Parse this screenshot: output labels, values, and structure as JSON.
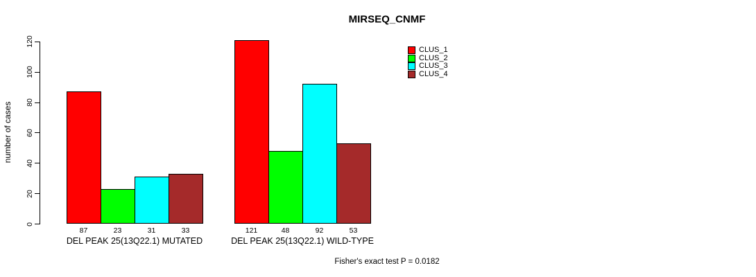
{
  "chart_data": {
    "type": "bar",
    "title": "MIRSEQ_CNMF",
    "ylabel": "number of cases",
    "xlabel": "",
    "ylim": [
      0,
      120
    ],
    "yticks": [
      0,
      20,
      40,
      60,
      80,
      100,
      120
    ],
    "grid": false,
    "legend_position": "top-right",
    "categories": [
      "DEL PEAK 25(13Q22.1) MUTATED",
      "DEL PEAK 25(13Q22.1) WILD-TYPE"
    ],
    "series": [
      {
        "name": "CLUS_1",
        "color": "#ff0000",
        "values": [
          87,
          121
        ]
      },
      {
        "name": "CLUS_2",
        "color": "#00ff00",
        "values": [
          23,
          48
        ]
      },
      {
        "name": "CLUS_3",
        "color": "#00ffff",
        "values": [
          31,
          92
        ]
      },
      {
        "name": "CLUS_4",
        "color": "#a52a2a",
        "values": [
          33,
          53
        ]
      }
    ],
    "bar_value_labels": [
      [
        "87",
        "23",
        "31",
        "33"
      ],
      [
        "121",
        "48",
        "92",
        "53"
      ]
    ],
    "annotation": "Fisher's exact test P = 0.0182"
  }
}
